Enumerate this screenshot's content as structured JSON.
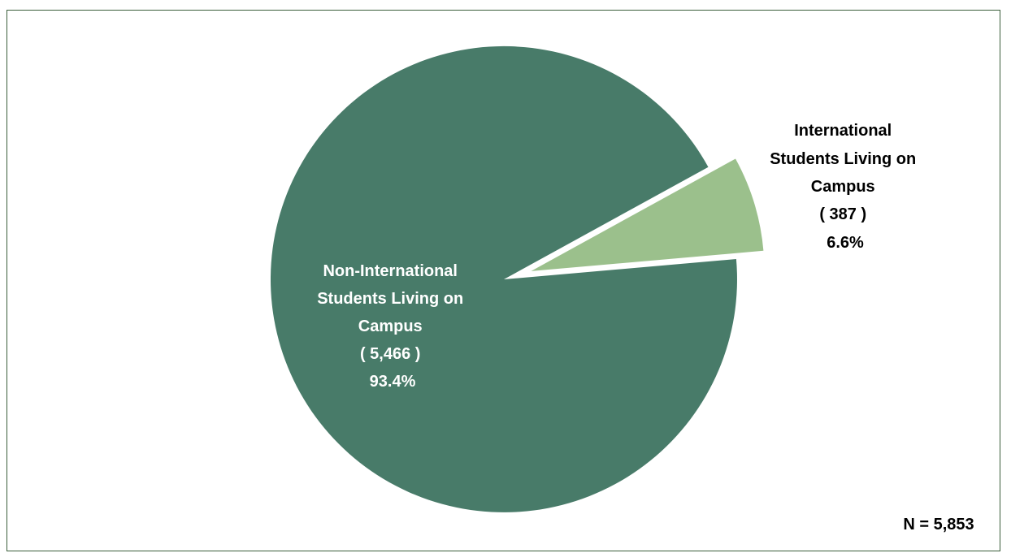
{
  "chart_data": {
    "type": "pie",
    "title": "",
    "slices": [
      {
        "label_lines": [
          "Non-International",
          "Students Living on",
          "Campus"
        ],
        "count_text": "( 5,466 )",
        "percent_text": "93.4%",
        "value": 5466,
        "color": "#487b69",
        "exploded": false
      },
      {
        "label_lines": [
          "International",
          "Students Living on",
          "Campus"
        ],
        "count_text": "( 387 )",
        "percent_text": "6.6%",
        "value": 387,
        "color": "#9bc08c",
        "exploded": true
      }
    ],
    "total_text": "N = 5,853"
  }
}
